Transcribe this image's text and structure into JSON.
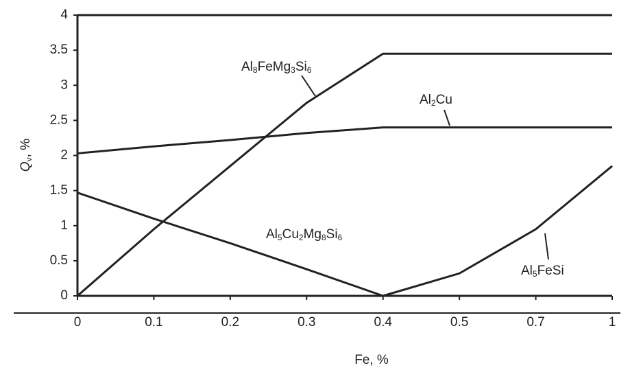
{
  "chart_data": {
    "type": "line",
    "x_label": "Fe, %",
    "y_label": "Qv, %",
    "categories": [
      "0",
      "0.1",
      "0.2",
      "0.3",
      "0.4",
      "0.5",
      "0.7",
      "1"
    ],
    "ylim": [
      0,
      4
    ],
    "yticks": [
      0,
      0.5,
      1,
      1.5,
      2,
      2.5,
      3,
      3.5,
      4
    ],
    "grid": false,
    "series": [
      {
        "name": "Al8FeMg3Si6",
        "color": "#222222",
        "values": [
          0,
          0.95,
          1.85,
          2.75,
          3.45,
          3.45,
          3.45,
          3.45
        ]
      },
      {
        "name": "Al2Cu",
        "color": "#222222",
        "values": [
          2.03,
          2.13,
          2.22,
          2.32,
          2.4,
          2.4,
          2.4,
          2.4
        ]
      },
      {
        "name": "Al5Cu2Mg8Si6",
        "color": "#222222",
        "values": [
          1.47,
          1.1,
          0.75,
          0.38,
          0,
          0,
          0,
          0
        ]
      },
      {
        "name": "Al5FeSi",
        "color": "#222222",
        "values": [
          null,
          null,
          null,
          null,
          0,
          0.32,
          0.95,
          1.85
        ]
      }
    ]
  }
}
